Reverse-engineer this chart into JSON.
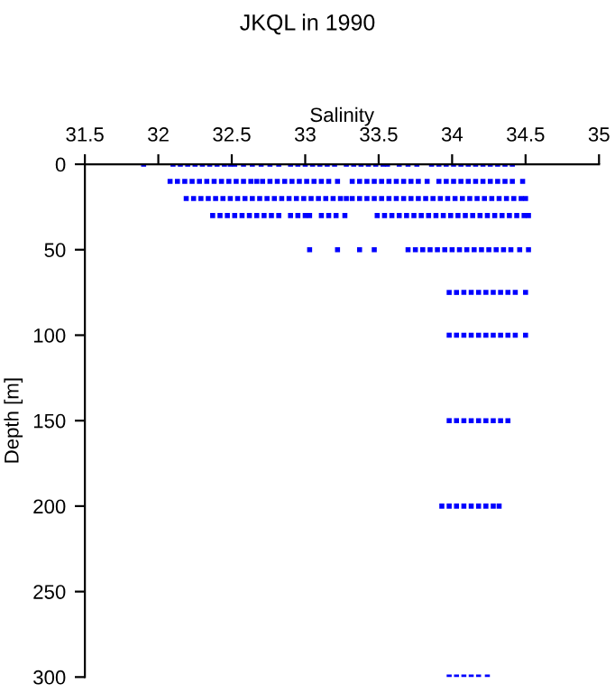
{
  "chart_data": {
    "type": "scatter",
    "title": "JKQL in 1990",
    "xlabel": "Salinity",
    "ylabel": "Depth [m]",
    "xlim": [
      31.5,
      35
    ],
    "xticks": [
      31.5,
      32,
      32.5,
      33,
      33.5,
      34,
      34.5,
      35
    ],
    "ylim": [
      300,
      0
    ],
    "yticks": [
      0,
      50,
      100,
      150,
      200,
      250,
      300
    ],
    "grid": false,
    "legend": false,
    "marker": "square",
    "series": [
      {
        "color": "#0000ff",
        "x": [
          31.9,
          32.1,
          32.15,
          32.2,
          32.25,
          32.3,
          32.35,
          32.4,
          32.45,
          32.49,
          32.52,
          32.58,
          32.64,
          32.7,
          32.76,
          32.82,
          32.9,
          32.95,
          33.0,
          33.05,
          33.1,
          33.15,
          33.2,
          33.28,
          33.33,
          33.38,
          33.43,
          33.48,
          33.53,
          33.56,
          33.64,
          33.7,
          33.76,
          33.86,
          33.91,
          33.96,
          34.01,
          34.06,
          34.11,
          34.16,
          34.21,
          34.26,
          34.31,
          34.36,
          34.41
        ],
        "values": [
          0,
          0,
          0,
          0,
          0,
          0,
          0,
          0,
          0,
          0,
          0,
          0,
          0,
          0,
          0,
          0,
          0,
          0,
          0,
          0,
          0,
          0,
          0,
          0,
          0,
          0,
          0,
          0,
          0,
          0,
          0,
          0,
          0,
          0,
          0,
          0,
          0,
          0,
          0,
          0,
          0,
          0,
          0,
          0,
          0
        ]
      },
      {
        "color": "#0000ff",
        "x": [
          32.08,
          32.13,
          32.18,
          32.23,
          32.28,
          32.33,
          32.38,
          32.43,
          32.48,
          32.53,
          32.58,
          32.63,
          32.67,
          32.71,
          32.76,
          32.81,
          32.86,
          32.91,
          32.96,
          33.01,
          33.06,
          33.11,
          33.16,
          33.22,
          33.32,
          33.37,
          33.42,
          33.47,
          33.52,
          33.57,
          33.62,
          33.67,
          33.72,
          33.77,
          33.83,
          33.91,
          33.96,
          34.01,
          34.06,
          34.11,
          34.16,
          34.21,
          34.26,
          34.31,
          34.36,
          34.41,
          34.48
        ],
        "values": [
          10,
          10,
          10,
          10,
          10,
          10,
          10,
          10,
          10,
          10,
          10,
          10,
          10,
          10,
          10,
          10,
          10,
          10,
          10,
          10,
          10,
          10,
          10,
          10,
          10,
          10,
          10,
          10,
          10,
          10,
          10,
          10,
          10,
          10,
          10,
          10,
          10,
          10,
          10,
          10,
          10,
          10,
          10,
          10,
          10,
          10,
          10
        ]
      },
      {
        "color": "#0000ff",
        "x": [
          32.19,
          32.24,
          32.29,
          32.34,
          32.39,
          32.44,
          32.49,
          32.54,
          32.59,
          32.64,
          32.69,
          32.74,
          32.79,
          32.84,
          32.89,
          32.94,
          32.99,
          33.04,
          33.09,
          33.14,
          33.19,
          33.24,
          33.28,
          33.32,
          33.37,
          33.42,
          33.47,
          33.52,
          33.57,
          33.62,
          33.67,
          33.72,
          33.77,
          33.82,
          33.87,
          33.92,
          33.97,
          34.02,
          34.07,
          34.12,
          34.17,
          34.22,
          34.27,
          34.32,
          34.37,
          34.42,
          34.47,
          34.5
        ],
        "values": [
          20,
          20,
          20,
          20,
          20,
          20,
          20,
          20,
          20,
          20,
          20,
          20,
          20,
          20,
          20,
          20,
          20,
          20,
          20,
          20,
          20,
          20,
          20,
          20,
          20,
          20,
          20,
          20,
          20,
          20,
          20,
          20,
          20,
          20,
          20,
          20,
          20,
          20,
          20,
          20,
          20,
          20,
          20,
          20,
          20,
          20,
          20,
          20
        ]
      },
      {
        "color": "#0000ff",
        "x": [
          32.37,
          32.42,
          32.47,
          32.52,
          32.57,
          32.62,
          32.67,
          32.72,
          32.77,
          32.82,
          32.9,
          32.95,
          33.0,
          33.03,
          33.11,
          33.16,
          33.21,
          33.27,
          33.49,
          33.54,
          33.59,
          33.64,
          33.69,
          33.74,
          33.79,
          33.84,
          33.89,
          33.94,
          33.99,
          34.04,
          34.09,
          34.14,
          34.19,
          34.24,
          34.29,
          34.34,
          34.39,
          34.44,
          34.49,
          34.52
        ],
        "values": [
          30,
          30,
          30,
          30,
          30,
          30,
          30,
          30,
          30,
          30,
          30,
          30,
          30,
          30,
          30,
          30,
          30,
          30,
          30,
          30,
          30,
          30,
          30,
          30,
          30,
          30,
          30,
          30,
          30,
          30,
          30,
          30,
          30,
          30,
          30,
          30,
          30,
          30,
          30,
          30
        ]
      },
      {
        "color": "#0000ff",
        "x": [
          33.03,
          33.22,
          33.37,
          33.47,
          33.7,
          33.75,
          33.8,
          33.85,
          33.9,
          33.95,
          34.0,
          34.05,
          34.1,
          34.15,
          34.2,
          34.25,
          34.3,
          34.35,
          34.4,
          34.46,
          34.52
        ],
        "values": [
          50,
          50,
          50,
          50,
          50,
          50,
          50,
          50,
          50,
          50,
          50,
          50,
          50,
          50,
          50,
          50,
          50,
          50,
          50,
          50,
          50
        ]
      },
      {
        "color": "#0000ff",
        "x": [
          33.98,
          34.03,
          34.08,
          34.13,
          34.18,
          34.23,
          34.28,
          34.33,
          34.38,
          34.43,
          34.5
        ],
        "values": [
          75,
          75,
          75,
          75,
          75,
          75,
          75,
          75,
          75,
          75,
          75
        ]
      },
      {
        "color": "#0000ff",
        "x": [
          33.98,
          34.03,
          34.08,
          34.13,
          34.18,
          34.23,
          34.28,
          34.33,
          34.38,
          34.43,
          34.5
        ],
        "values": [
          100,
          100,
          100,
          100,
          100,
          100,
          100,
          100,
          100,
          100,
          100
        ]
      },
      {
        "color": "#0000ff",
        "x": [
          33.98,
          34.03,
          34.08,
          34.13,
          34.18,
          34.23,
          34.28,
          34.33,
          34.38
        ],
        "values": [
          150,
          150,
          150,
          150,
          150,
          150,
          150,
          150,
          150
        ]
      },
      {
        "color": "#0000ff",
        "x": [
          33.93,
          33.98,
          34.03,
          34.08,
          34.13,
          34.18,
          34.23,
          34.28,
          34.32
        ],
        "values": [
          200,
          200,
          200,
          200,
          200,
          200,
          200,
          200,
          200
        ]
      },
      {
        "color": "#0000ff",
        "x": [
          33.98,
          34.03,
          34.08,
          34.13,
          34.18,
          34.24
        ],
        "values": [
          300,
          300,
          300,
          300,
          300,
          300
        ]
      }
    ]
  }
}
